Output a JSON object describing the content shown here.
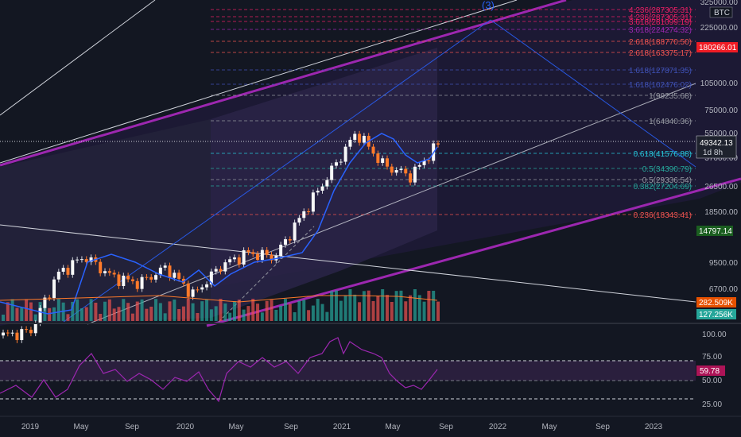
{
  "symbol": "BTC",
  "colors": {
    "background": "#131722",
    "bull": "#26a69a",
    "bear": "#ef5350",
    "candle_up": "#f7f8f8",
    "candle_down": "#ff7a2a",
    "rsi_line": "#9c27b0",
    "rsi_band": "#2a1f3d",
    "channel": "#9c27b0",
    "price_line": "#ffffff",
    "fib_cyan": "#26c6da",
    "fib_pink": "#e91e63"
  },
  "price_axis": {
    "ticks": [
      "325000.00",
      "225000.00",
      "105000.00",
      "75000.00",
      "55000.00",
      "37000.00",
      "26500.00",
      "18500.00",
      "9500.00",
      "6700.00"
    ],
    "current_price": "49342.13",
    "timeframe": "1d 8h",
    "fib_tag": "180266.01",
    "level_tag": "14797.14",
    "volume_tag1": "282.509K",
    "volume_tag2": "127.256K"
  },
  "rsi_axis": {
    "ticks": [
      "100.00",
      "75.00",
      "50.00",
      "25.00"
    ],
    "current": "59.78"
  },
  "time_axis": {
    "labels": [
      "2019",
      "May",
      "Sep",
      "2020",
      "May",
      "Sep",
      "2021",
      "May",
      "Sep",
      "2022",
      "May",
      "Sep",
      "2023"
    ]
  },
  "wave_label": "(3)",
  "fib_levels": [
    {
      "label": "4.236(287305.31)",
      "color": "#e91e63"
    },
    {
      "label": "4.236(287305.31)",
      "color": "#e91e63"
    },
    {
      "label": "3.618(281099.19)",
      "color": "#e91e63"
    },
    {
      "label": "3.618(224274.32)",
      "color": "#9c27b0"
    },
    {
      "label": "2.618(188770.50)",
      "color": "#ef5350"
    },
    {
      "label": "2.618(163375.17)",
      "color": "#ef5350"
    },
    {
      "label": "1.618(127871.35)",
      "color": "#3f51b5"
    },
    {
      "label": "1.618(102476.02)",
      "color": "#3f51b5"
    },
    {
      "label": "1(90235.68)",
      "color": "#9598a1"
    },
    {
      "label": "1(64840.36)",
      "color": "#9598a1"
    },
    {
      "label": "0.618(41576.88)",
      "color": "#26c6da"
    },
    {
      "label": "0.5(34390.79)",
      "color": "#26a69a"
    },
    {
      "label": "0.5(29336.54)",
      "color": "#9598a1"
    },
    {
      "label": "0.382(27204.69)",
      "color": "#26a69a"
    },
    {
      "label": "0.236(18343.41)",
      "color": "#ef5350"
    }
  ],
  "chart_data": {
    "type": "candlestick",
    "title": "",
    "y_scale": "log",
    "x": [
      "2019-01",
      "2019-03",
      "2019-05",
      "2019-07",
      "2019-09",
      "2019-11",
      "2020-01",
      "2020-03",
      "2020-05",
      "2020-07",
      "2020-09",
      "2020-11",
      "2021-01",
      "2021-03",
      "2021-05",
      "2021-07",
      "2021-08"
    ],
    "close": [
      3700,
      3900,
      8500,
      10800,
      8200,
      7500,
      9300,
      6400,
      9500,
      11300,
      10700,
      19000,
      33000,
      58000,
      37000,
      32000,
      49342.13
    ],
    "rsi": {
      "ticks": [
        100,
        75,
        50,
        25
      ],
      "current": 59.78
    }
  }
}
